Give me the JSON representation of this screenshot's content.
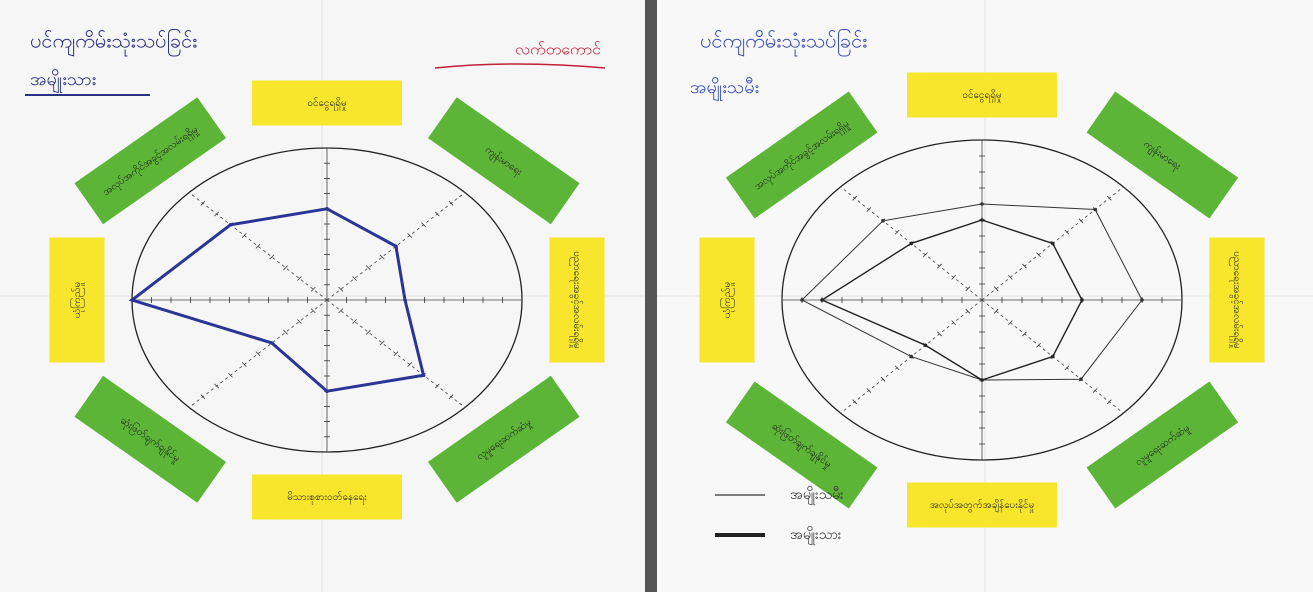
{
  "panels": [
    {
      "title": "ပင်ကျကိမ်းသုံးသပ်ခြင်း",
      "subtitle": "အမျိုးသား",
      "annotation": "လက်တကောင်",
      "notes": [
        {
          "label": "ဝင်ငွေရရှိမှု",
          "color": "#f7e62c"
        },
        {
          "label": "ကျန်းမာရေး",
          "color": "#5cb536"
        },
        {
          "label": "ပညာရေးအခွင့်အလမ်းရရှိမှု",
          "color": "#f7e62c"
        },
        {
          "label": "လူမှုရေးဆက်ဆံမှု",
          "color": "#5cb536"
        },
        {
          "label": "မိသားစုစားဝတ်နေရေး",
          "color": "#f7e62c"
        },
        {
          "label": "ဆုံးဖြတ်ချက်ချနိုင်မှု",
          "color": "#5cb536"
        },
        {
          "label": "ယုံကြည်မှု",
          "color": "#f7e62c"
        },
        {
          "label": "အလုပ်အကိုင်အခွင့်အလမ်းရရှိမှု",
          "color": "#5cb536"
        }
      ],
      "radar": {
        "rlim": [
          0,
          10
        ],
        "rticks": [
          1,
          2,
          3,
          4,
          5,
          6,
          7,
          8,
          9,
          10
        ],
        "series": [
          {
            "color": "#2a3596",
            "values": [
              6,
              5,
              4,
              7,
              6,
              4,
              10,
              7
            ]
          }
        ]
      }
    },
    {
      "title": "ပင်ကျကိမ်းသုံးသပ်ခြင်း",
      "subtitle": "အမျိုးသမီး",
      "notes": [
        {
          "label": "ဝင်ငွေရရှိမှု",
          "color": "#f7e62c"
        },
        {
          "label": "ကျန်းမာရေး",
          "color": "#5cb536"
        },
        {
          "label": "ပညာရေးအခွင့်အလမ်းရရှိမှု",
          "color": "#f7e62c"
        },
        {
          "label": "လူမှုရေးဆက်ဆံမှု",
          "color": "#5cb536"
        },
        {
          "label": "အလုပ်အတွက်အချိန်ပေးနိုင်မှု",
          "color": "#f7e62c"
        },
        {
          "label": "ဆုံးဖြတ်ချက်ချနိုင်မှု",
          "color": "#5cb536"
        },
        {
          "label": "ယုံကြည်မှု",
          "color": "#f7e62c"
        },
        {
          "label": "အလုပ်အကိုင်အခွင့်အလမ်းရရှိမှု",
          "color": "#5cb536"
        }
      ],
      "radar": {
        "rlim": [
          0,
          10
        ],
        "rticks": [
          1,
          2,
          3,
          4,
          5,
          6,
          7,
          8,
          9,
          10
        ],
        "series": [
          {
            "name": "အမျိုးသမီး",
            "color": "#333333",
            "width": 1,
            "values": [
              6,
              8,
              8,
              7,
              5,
              5,
              9,
              7
            ]
          },
          {
            "name": "အမျိုးသား",
            "color": "#222222",
            "width": 1.4,
            "values": [
              5,
              5,
              5,
              5,
              5,
              4,
              8,
              5
            ]
          }
        ]
      }
    }
  ]
}
